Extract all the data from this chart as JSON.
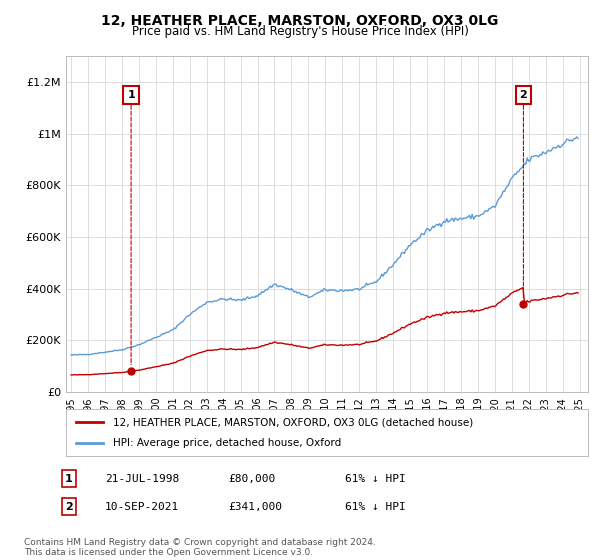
{
  "title": "12, HEATHER PLACE, MARSTON, OXFORD, OX3 0LG",
  "subtitle": "Price paid vs. HM Land Registry's House Price Index (HPI)",
  "footnote": "Contains HM Land Registry data © Crown copyright and database right 2024.\nThis data is licensed under the Open Government Licence v3.0.",
  "legend_entry1": "12, HEATHER PLACE, MARSTON, OXFORD, OX3 0LG (detached house)",
  "legend_entry2": "HPI: Average price, detached house, Oxford",
  "sale1_label": "1",
  "sale1_date": "21-JUL-1998",
  "sale1_price": 80000,
  "sale1_price_str": "£80,000",
  "sale1_pct": "61% ↓ HPI",
  "sale2_label": "2",
  "sale2_date": "10-SEP-2021",
  "sale2_price": 341000,
  "sale2_price_str": "£341,000",
  "sale2_pct": "61% ↓ HPI",
  "hpi_color": "#5b9bd5",
  "price_color": "#c00000",
  "marker_color": "#c00000",
  "annotation_box_color": "#c00000",
  "ylim": [
    0,
    1300000
  ],
  "yticks": [
    0,
    200000,
    400000,
    600000,
    800000,
    1000000,
    1200000
  ],
  "ytick_labels": [
    "£0",
    "£200K",
    "£400K",
    "£600K",
    "£800K",
    "£1M",
    "£1.2M"
  ],
  "xlim_start": 1994.7,
  "xlim_end": 2025.5,
  "background_color": "#ffffff",
  "grid_color": "#d0d0d0",
  "sale1_t": 1998.54,
  "sale2_t": 2021.69
}
